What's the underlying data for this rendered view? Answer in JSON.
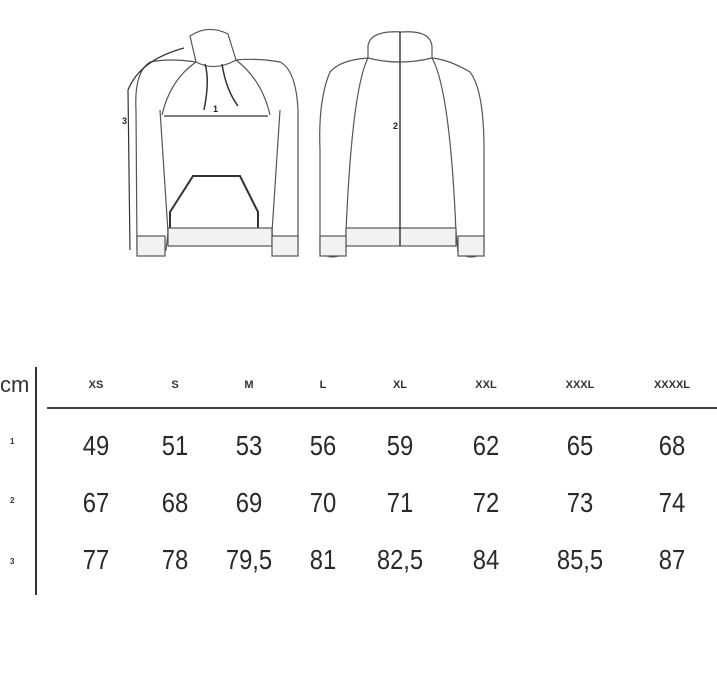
{
  "diagram": {
    "front_label_chest": "1",
    "back_label_length": "2",
    "front_label_sleeve": "3"
  },
  "table": {
    "unit": "cm",
    "sizes": [
      "XS",
      "S",
      "M",
      "L",
      "XL",
      "XXL",
      "XXXL",
      "XXXXL"
    ],
    "rows": [
      {
        "label": "1",
        "values": [
          "49",
          "51",
          "53",
          "56",
          "59",
          "62",
          "65",
          "68"
        ]
      },
      {
        "label": "2",
        "values": [
          "67",
          "68",
          "69",
          "70",
          "71",
          "72",
          "73",
          "74"
        ]
      },
      {
        "label": "3",
        "values": [
          "77",
          "78",
          "79,5",
          "81",
          "82,5",
          "84",
          "85,5",
          "87"
        ]
      }
    ]
  }
}
